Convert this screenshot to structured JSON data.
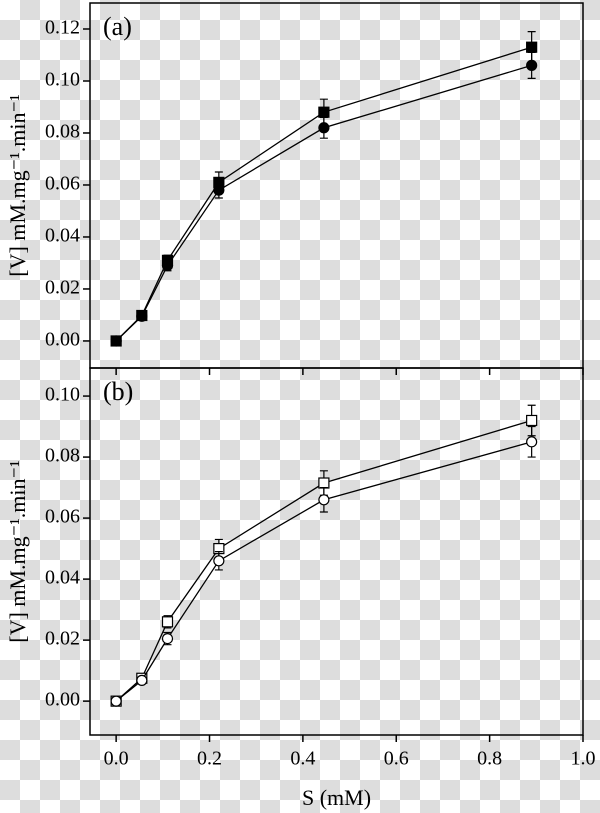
{
  "chart_data": [
    {
      "type": "line",
      "label": "(a)",
      "y_label": "[V] mM.mg⁻¹.min⁻¹",
      "x": [
        0,
        0.055,
        0.11,
        0.22,
        0.445,
        0.89
      ],
      "series": [
        {
          "color": "#000000",
          "marker": "square",
          "filled": true,
          "values": [
            0,
            0.0098,
            0.031,
            0.061,
            0.088,
            0.113
          ],
          "errors": [
            0.001,
            0.001,
            0.002,
            0.004,
            0.005,
            0.006
          ]
        },
        {
          "color": "#000000",
          "marker": "circle",
          "filled": true,
          "values": [
            0,
            0.0095,
            0.029,
            0.058,
            0.082,
            0.106
          ],
          "errors": [
            0.001,
            0.001,
            0.002,
            0.003,
            0.004,
            0.005
          ]
        }
      ],
      "xlim": [
        -0.056,
        1.0
      ],
      "xticks": [
        {
          "value": 0,
          "label": "0.0"
        },
        0.2,
        0.4,
        0.6,
        0.8,
        {
          "value": 1,
          "label": "1.0"
        }
      ],
      "xtick_labels": false,
      "ylim": [
        -0.0104,
        0.13
      ],
      "yticks": [
        {
          "value": 0,
          "label": "0.00"
        },
        0.02,
        0.04,
        0.06,
        0.08,
        {
          "value": 0.1,
          "label": "0.10"
        },
        0.12
      ]
    },
    {
      "type": "line",
      "label": "(b)",
      "y_label": "[V] mM.mg⁻¹.min⁻¹",
      "x_label": "S (mM)",
      "x": [
        0,
        0.055,
        0.11,
        0.22,
        0.445,
        0.89
      ],
      "series": [
        {
          "color": "#000000",
          "marker": "square",
          "filled": false,
          "values": [
            0,
            0.0075,
            0.026,
            0.05,
            0.0715,
            0.092
          ],
          "errors": [
            0.001,
            0.001,
            0.002,
            0.003,
            0.004,
            0.005
          ]
        },
        {
          "color": "#000000",
          "marker": "circle",
          "filled": false,
          "values": [
            0,
            0.0068,
            0.0205,
            0.046,
            0.066,
            0.085
          ],
          "errors": [
            0.001,
            0.001,
            0.002,
            0.003,
            0.004,
            0.005
          ]
        }
      ],
      "xlim": [
        -0.056,
        1.0
      ],
      "xticks": [
        {
          "value": 0,
          "label": "0.0"
        },
        0.2,
        0.4,
        0.6,
        0.8,
        {
          "value": 1,
          "label": "1.0"
        }
      ],
      "xtick_labels": true,
      "ylim": [
        -0.0111,
        0.1092
      ],
      "yticks": [
        {
          "value": 0,
          "label": "0.00"
        },
        0.02,
        0.04,
        0.06,
        0.08,
        {
          "value": 0.1,
          "label": "0.10"
        }
      ]
    }
  ]
}
